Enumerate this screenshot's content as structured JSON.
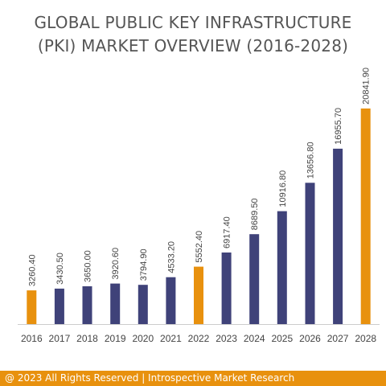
{
  "chart_data": {
    "type": "bar",
    "title_lines": [
      "GLOBAL PUBLIC KEY INFRASTRUCTURE",
      "(PKI) MARKET OVERVIEW (2016-2028)"
    ],
    "categories": [
      "2016",
      "2017",
      "2018",
      "2019",
      "2020",
      "2021",
      "2022",
      "2023",
      "2024",
      "2025",
      "2026",
      "2027",
      "2028"
    ],
    "values": [
      3260.4,
      3430.5,
      3650.0,
      3920.6,
      3794.9,
      4533.2,
      5552.4,
      6917.4,
      8689.5,
      10916.8,
      13656.8,
      16955.7,
      20841.9
    ],
    "value_labels": [
      "3260.40",
      "3430.50",
      "3650.00",
      "3920.60",
      "3794.90",
      "4533.20",
      "5552.40",
      "6917.40",
      "8689.50",
      "10916.80",
      "13656.80",
      "16955.70",
      "20841.90"
    ],
    "highlight_categories": [
      "2016",
      "2022",
      "2028"
    ],
    "colors": {
      "primary": "#3f4279",
      "highlight": "#e8910e",
      "axis": "#cccccc",
      "label": "#444444"
    },
    "xlabel": "",
    "ylabel": "",
    "ylim": [
      0,
      22000
    ],
    "grid": false,
    "legend": "none"
  },
  "footer": {
    "text": "@ 2023 All Rights Reserved | Introspective Market Research"
  }
}
